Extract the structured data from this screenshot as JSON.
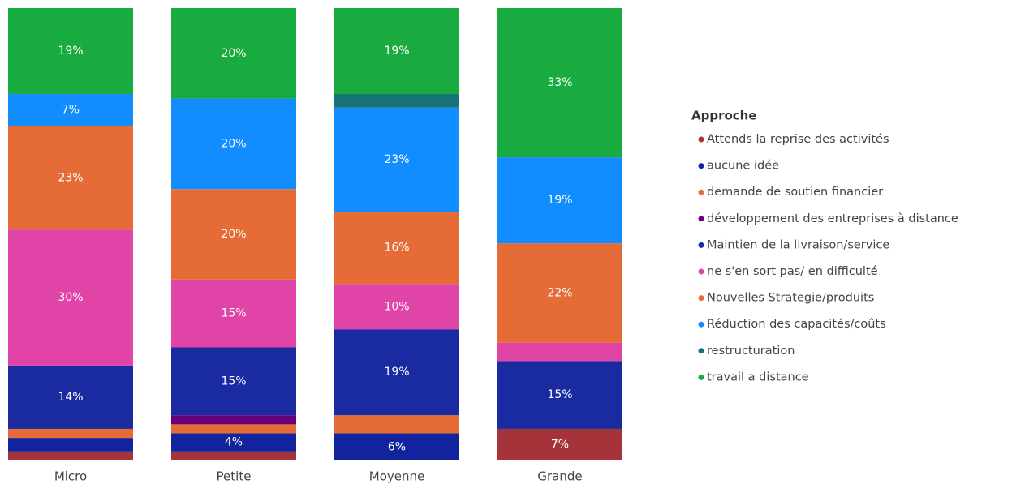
{
  "chart_data": {
    "type": "stacked_bar",
    "legend_title": "Approche",
    "categories": [
      "Micro",
      "Petite",
      "Moyenne",
      "Grande"
    ],
    "ylim": [
      0,
      100
    ],
    "series": [
      {
        "name": "Attends la reprise des activités",
        "color": "#a4343a",
        "values": [
          2,
          2,
          0,
          7
        ],
        "value_labels": [
          null,
          null,
          null,
          "7%"
        ]
      },
      {
        "name": "aucune idée",
        "color": "#12239e",
        "values": [
          3,
          4,
          6,
          0
        ],
        "value_labels": [
          null,
          "4%",
          "6%",
          null
        ]
      },
      {
        "name": "demande de soutien financier",
        "color": "#e66c37",
        "values": [
          2,
          2,
          4,
          0
        ],
        "value_labels": [
          null,
          null,
          null,
          null
        ]
      },
      {
        "name": "développement des entreprises à distance",
        "color": "#6b007b",
        "values": [
          0,
          2,
          0,
          0
        ],
        "value_labels": [
          null,
          null,
          null,
          null
        ]
      },
      {
        "name": "Maintien de la livraison/service",
        "color": "#1a2aa0",
        "values": [
          14,
          15,
          19,
          15
        ],
        "value_labels": [
          "14%",
          "15%",
          "19%",
          "15%"
        ]
      },
      {
        "name": "ne s'en sort pas/ en difficulté",
        "color": "#e044a7",
        "values": [
          30,
          15,
          10,
          4
        ],
        "value_labels": [
          "30%",
          "15%",
          "10%",
          null
        ]
      },
      {
        "name": "Nouvelles Strategie/produits",
        "color": "#e66c37",
        "values": [
          23,
          20,
          16,
          22
        ],
        "value_labels": [
          "23%",
          "20%",
          "16%",
          "22%"
        ]
      },
      {
        "name": "Réduction des capacités/coûts",
        "color": "#118dff",
        "values": [
          7,
          20,
          23,
          19
        ],
        "value_labels": [
          "7%",
          "20%",
          "23%",
          "19%"
        ]
      },
      {
        "name": "restructuration",
        "color": "#197278",
        "values": [
          0,
          0,
          3,
          0
        ],
        "value_labels": [
          null,
          null,
          null,
          null
        ]
      },
      {
        "name": "travail a distance",
        "color": "#1aab40",
        "values": [
          19,
          20,
          19,
          33
        ],
        "value_labels": [
          "19%",
          "20%",
          "19%",
          "33%"
        ]
      }
    ]
  }
}
